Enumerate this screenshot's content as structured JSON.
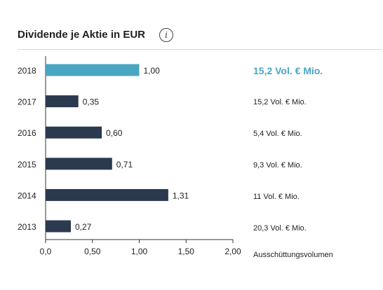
{
  "header": {
    "title": "Dividende je Aktie in EUR",
    "info_icon_glyph": "i"
  },
  "colors": {
    "highlight": "#4aa6c0",
    "bar": "#2b3a4f",
    "axis": "#333333"
  },
  "chart_data": {
    "type": "bar",
    "orientation": "horizontal",
    "title": "Dividende je Aktie in EUR",
    "categories": [
      "2018",
      "2017",
      "2016",
      "2015",
      "2014",
      "2013"
    ],
    "values": [
      1.0,
      0.35,
      0.6,
      0.71,
      1.31,
      0.27
    ],
    "value_labels": [
      "1,00",
      "0,35",
      "0,60",
      "0,71",
      "1,31",
      "0,27"
    ],
    "highlight_category": "2018",
    "xlim": [
      0,
      2.0
    ],
    "xticks": [
      0,
      0.5,
      1.0,
      1.5,
      2.0
    ],
    "xtick_labels": [
      "0,0",
      "0,50",
      "1,00",
      "1,50",
      "2,00"
    ],
    "grid": false
  },
  "volumes": {
    "label": "Ausschüttungsvolumen",
    "items": [
      "15,2 Vol. € Mio.",
      "15,2 Vol. € Mio.",
      "5,4 Vol. € Mio.",
      "9,3 Vol. € Mio.",
      "11 Vol. € Mio.",
      "20,3 Vol. € Mio."
    ]
  }
}
